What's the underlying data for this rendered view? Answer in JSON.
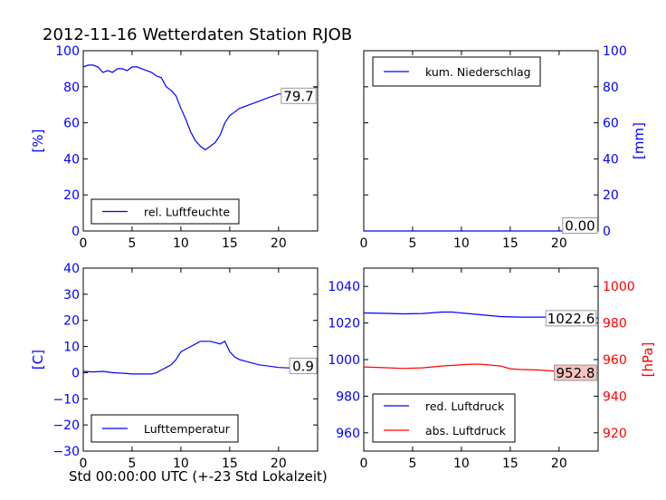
{
  "title": "2012-11-16 Wetterdaten Station RJOB",
  "xlabel": "Std 00:00:00 UTC (+-23 Std Lokalzeit)",
  "colors": {
    "blue": "#0000ff",
    "red": "#ff0000",
    "black": "#000000"
  },
  "chart_data": [
    {
      "type": "line",
      "id": "humidity",
      "xlim": [
        0,
        24
      ],
      "ylim": [
        0,
        100
      ],
      "xticks": [
        "0",
        "5",
        "10",
        "15",
        "20"
      ],
      "yticks": [
        "0",
        "20",
        "40",
        "60",
        "80",
        "100"
      ],
      "ylabel": "[%]",
      "legend": "lower-left",
      "last_value_label": "79.7",
      "series": [
        {
          "name": "rel. Luftfeuchte",
          "color": "#0000ff",
          "x": [
            0,
            0.5,
            1,
            1.5,
            2,
            2.5,
            3,
            3.5,
            4,
            4.5,
            5,
            5.5,
            6,
            6.5,
            7,
            7.5,
            8,
            8.5,
            9,
            9.5,
            10,
            10.5,
            11,
            11.5,
            12,
            12.5,
            13,
            13.5,
            14,
            14.5,
            15,
            15.5,
            16,
            16.5,
            17,
            17.5,
            18,
            18.5,
            19,
            19.5,
            20,
            20.5,
            21,
            21.5,
            22,
            22.5,
            23,
            23.5,
            24
          ],
          "y": [
            91,
            92,
            92,
            91,
            88,
            89,
            88,
            90,
            90,
            89,
            91,
            91,
            90,
            89,
            88,
            86,
            85,
            80,
            78,
            75,
            68,
            62,
            55,
            50,
            47,
            45,
            47,
            49,
            53,
            60,
            64,
            66,
            68,
            69,
            70,
            71,
            72,
            73,
            74,
            75,
            76,
            76,
            77,
            77,
            77,
            78,
            76,
            79,
            80
          ]
        }
      ]
    },
    {
      "type": "line",
      "id": "precipitation",
      "xlim": [
        0,
        24
      ],
      "ylim": [
        0,
        100
      ],
      "xticks": [
        "0",
        "5",
        "10",
        "15",
        "20"
      ],
      "yticks": [
        "0",
        "20",
        "40",
        "60",
        "80",
        "100"
      ],
      "ylabel": "[mm]",
      "legend": "top-left",
      "last_value_label": "0.00",
      "series": [
        {
          "name": "kum. Niederschlag",
          "color": "#0000ff",
          "x": [
            0,
            24
          ],
          "y": [
            0,
            0
          ]
        }
      ]
    },
    {
      "type": "line",
      "id": "temperature",
      "xlim": [
        0,
        24
      ],
      "ylim": [
        -30,
        40
      ],
      "xticks": [
        "0",
        "5",
        "10",
        "15",
        "20"
      ],
      "yticks": [
        "−30",
        "−20",
        "−10",
        "0",
        "10",
        "20",
        "30",
        "40"
      ],
      "ylabel": "[C]",
      "legend": "lower-left",
      "last_value_label": "0.9",
      "series": [
        {
          "name": "Lufttemperatur",
          "color": "#0000ff",
          "x": [
            0,
            1,
            2,
            3,
            4,
            5,
            6,
            7,
            7.5,
            8,
            8.5,
            9,
            9.5,
            10,
            10.5,
            11,
            11.5,
            12,
            12.5,
            13,
            13.5,
            14,
            14.5,
            15,
            15.5,
            16,
            16.5,
            17,
            18,
            19,
            20,
            21,
            22,
            23,
            24
          ],
          "y": [
            0.5,
            0.3,
            0.5,
            0,
            -0.2,
            -0.5,
            -0.5,
            -0.5,
            0,
            1,
            2,
            3,
            5,
            8,
            9,
            10,
            11,
            12,
            12,
            12,
            11.5,
            11,
            12,
            8,
            6,
            5,
            4.5,
            4,
            3,
            2.5,
            2,
            1.8,
            1.5,
            1.2,
            0.9
          ]
        }
      ]
    },
    {
      "type": "line",
      "id": "pressure",
      "xlim": [
        0,
        24
      ],
      "ylim": [
        950,
        1050
      ],
      "ylim_right": [
        910,
        1010
      ],
      "xticks": [
        "0",
        "5",
        "10",
        "15",
        "20"
      ],
      "yticks": [
        "960",
        "980",
        "1000",
        "1020",
        "1040"
      ],
      "yticks_right": [
        "920",
        "940",
        "960",
        "980",
        "1000"
      ],
      "ylabel_right": "[hPa]",
      "legend": "lower-left",
      "last_value_labels": [
        "1022.6",
        "952.8"
      ],
      "series": [
        {
          "name": "red. Luftdruck",
          "color": "#0000ff",
          "axis": "left",
          "x": [
            0,
            2,
            4,
            6,
            8,
            9,
            10,
            12,
            14,
            16,
            18,
            20,
            22,
            24
          ],
          "y": [
            1025.5,
            1025.3,
            1025,
            1025.2,
            1026,
            1026,
            1025.5,
            1024.5,
            1023.5,
            1023.2,
            1023.2,
            1023.3,
            1023,
            1022.6
          ]
        },
        {
          "name": "abs. Luftdruck",
          "color": "#ff0000",
          "axis": "right",
          "x": [
            0,
            2,
            4,
            6,
            8,
            10,
            11,
            12,
            13,
            14,
            15,
            16,
            18,
            20,
            22,
            24
          ],
          "y": [
            956,
            955.6,
            955.2,
            955.5,
            956.5,
            957.2,
            957.5,
            957.5,
            957,
            956.5,
            955,
            954.6,
            954.3,
            953.5,
            953,
            952.8
          ]
        }
      ]
    }
  ]
}
